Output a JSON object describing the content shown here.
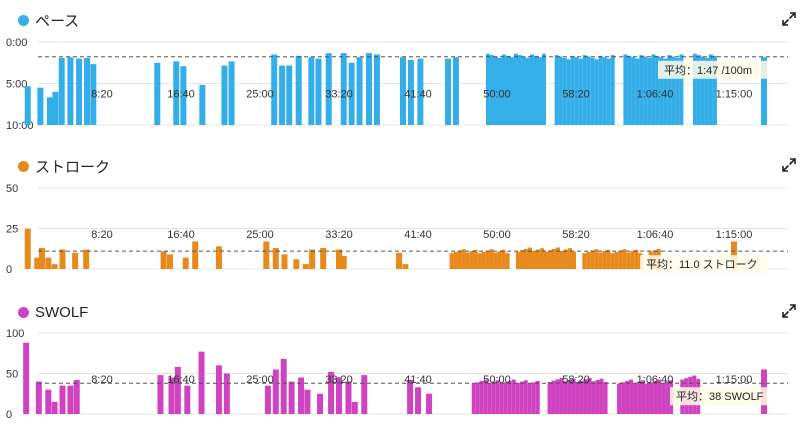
{
  "colors": {
    "pace": "#33aee8",
    "stroke": "#e8891c",
    "swolf": "#d042c0",
    "grid": "#e4e4e4",
    "avg_line": "#555555"
  },
  "icons": {
    "expand": "expand-arrows-icon"
  },
  "x_ticks": [
    "8:20",
    "16:40",
    "25:00",
    "33:20",
    "41:40",
    "50:00",
    "58:20",
    "1:06:40",
    "1:15:00"
  ],
  "chart_data": [
    {
      "type": "bar",
      "title": "ペース",
      "y_tick_labels": [
        "0:00",
        "5:00",
        "10:00"
      ],
      "ylim_seconds": [
        0,
        600
      ],
      "y_inverted": true,
      "xlim_seconds": [
        0,
        4700
      ],
      "average_seconds": 107,
      "average_label": "平均：1:47 /100m",
      "bars": [
        {
          "t": 30,
          "v": 320
        },
        {
          "t": 110,
          "v": 330
        },
        {
          "t": 170,
          "v": 400
        },
        {
          "t": 205,
          "v": 360
        },
        {
          "t": 245,
          "v": 115
        },
        {
          "t": 300,
          "v": 110
        },
        {
          "t": 355,
          "v": 120
        },
        {
          "t": 405,
          "v": 115
        },
        {
          "t": 445,
          "v": 160
        },
        {
          "t": 850,
          "v": 150
        },
        {
          "t": 970,
          "v": 140
        },
        {
          "t": 1015,
          "v": 175
        },
        {
          "t": 1135,
          "v": 310
        },
        {
          "t": 1275,
          "v": 170
        },
        {
          "t": 1320,
          "v": 140
        },
        {
          "t": 1590,
          "v": 90
        },
        {
          "t": 1640,
          "v": 170
        },
        {
          "t": 1685,
          "v": 170
        },
        {
          "t": 1745,
          "v": 100
        },
        {
          "t": 1825,
          "v": 110
        },
        {
          "t": 1870,
          "v": 120
        },
        {
          "t": 1935,
          "v": 80
        },
        {
          "t": 2030,
          "v": 80
        },
        {
          "t": 2080,
          "v": 150
        },
        {
          "t": 2130,
          "v": 110
        },
        {
          "t": 2190,
          "v": 80
        },
        {
          "t": 2240,
          "v": 90
        },
        {
          "t": 2405,
          "v": 110
        },
        {
          "t": 2455,
          "v": 130
        },
        {
          "t": 2515,
          "v": 120
        },
        {
          "t": 2690,
          "v": 120
        },
        {
          "t": 2740,
          "v": 110
        }
      ],
      "blocks": [
        {
          "from": 2930,
          "to": 3330,
          "v": 100
        },
        {
          "from": 3365,
          "to": 3765,
          "v": 110
        },
        {
          "from": 3800,
          "to": 4200,
          "v": 105
        },
        {
          "from": 4240,
          "to": 4400,
          "v": 100
        }
      ],
      "trailing_bars": [
        {
          "t": 4690,
          "v": 110
        }
      ]
    },
    {
      "type": "bar",
      "title": "ストローク",
      "y_tick_labels": [
        "0",
        "25",
        "50"
      ],
      "ylim": [
        0,
        50
      ],
      "xlim_seconds": [
        0,
        4700
      ],
      "average": 11.0,
      "average_label": "平均：11.0 ストローク",
      "bars": [
        {
          "t": 30,
          "v": 25
        },
        {
          "t": 90,
          "v": 7
        },
        {
          "t": 120,
          "v": 13
        },
        {
          "t": 160,
          "v": 7
        },
        {
          "t": 200,
          "v": 3
        },
        {
          "t": 250,
          "v": 12
        },
        {
          "t": 330,
          "v": 10
        },
        {
          "t": 400,
          "v": 12
        },
        {
          "t": 890,
          "v": 11
        },
        {
          "t": 930,
          "v": 9
        },
        {
          "t": 1030,
          "v": 7
        },
        {
          "t": 1090,
          "v": 17
        },
        {
          "t": 1240,
          "v": 14
        },
        {
          "t": 1540,
          "v": 17
        },
        {
          "t": 1600,
          "v": 13
        },
        {
          "t": 1655,
          "v": 9
        },
        {
          "t": 1730,
          "v": 6
        },
        {
          "t": 1790,
          "v": 3
        },
        {
          "t": 1830,
          "v": 12
        },
        {
          "t": 1900,
          "v": 13
        },
        {
          "t": 2000,
          "v": 12
        },
        {
          "t": 2030,
          "v": 8
        },
        {
          "t": 2380,
          "v": 10
        },
        {
          "t": 2420,
          "v": 3
        }
      ],
      "blocks": [
        {
          "from": 2700,
          "to": 3080,
          "v": 11
        },
        {
          "from": 3120,
          "to": 3500,
          "v": 12
        },
        {
          "from": 3540,
          "to": 3920,
          "v": 11
        },
        {
          "from": 3960,
          "to": 4060,
          "v": 12
        }
      ],
      "trailing_bars": [
        {
          "t": 4500,
          "v": 17
        }
      ]
    },
    {
      "type": "bar",
      "title": "SWOLF",
      "y_tick_labels": [
        "0",
        "50",
        "100"
      ],
      "ylim": [
        0,
        100
      ],
      "xlim_seconds": [
        0,
        4700
      ],
      "average": 38,
      "average_label": "平均：38 SWOLF",
      "bars": [
        {
          "t": 20,
          "v": 88
        },
        {
          "t": 100,
          "v": 40
        },
        {
          "t": 160,
          "v": 30
        },
        {
          "t": 200,
          "v": 15
        },
        {
          "t": 250,
          "v": 35
        },
        {
          "t": 300,
          "v": 35
        },
        {
          "t": 340,
          "v": 42
        },
        {
          "t": 870,
          "v": 48
        },
        {
          "t": 940,
          "v": 45
        },
        {
          "t": 980,
          "v": 58
        },
        {
          "t": 1040,
          "v": 35
        },
        {
          "t": 1130,
          "v": 77
        },
        {
          "t": 1240,
          "v": 60
        },
        {
          "t": 1290,
          "v": 50
        },
        {
          "t": 1550,
          "v": 35
        },
        {
          "t": 1600,
          "v": 55
        },
        {
          "t": 1650,
          "v": 68
        },
        {
          "t": 1700,
          "v": 40
        },
        {
          "t": 1760,
          "v": 45
        },
        {
          "t": 1800,
          "v": 30
        },
        {
          "t": 1880,
          "v": 25
        },
        {
          "t": 1950,
          "v": 52
        },
        {
          "t": 2000,
          "v": 45
        },
        {
          "t": 2060,
          "v": 40
        },
        {
          "t": 2100,
          "v": 15
        },
        {
          "t": 2160,
          "v": 48
        },
        {
          "t": 2450,
          "v": 42
        },
        {
          "t": 2500,
          "v": 33
        },
        {
          "t": 2570,
          "v": 25
        }
      ],
      "blocks": [
        {
          "from": 2840,
          "to": 3280,
          "v": 40
        },
        {
          "from": 3320,
          "to": 3720,
          "v": 42
        },
        {
          "from": 3760,
          "to": 4120,
          "v": 40
        },
        {
          "from": 4160,
          "to": 4310,
          "v": 45
        }
      ],
      "trailing_bars": [
        {
          "t": 4690,
          "v": 55
        }
      ]
    }
  ]
}
